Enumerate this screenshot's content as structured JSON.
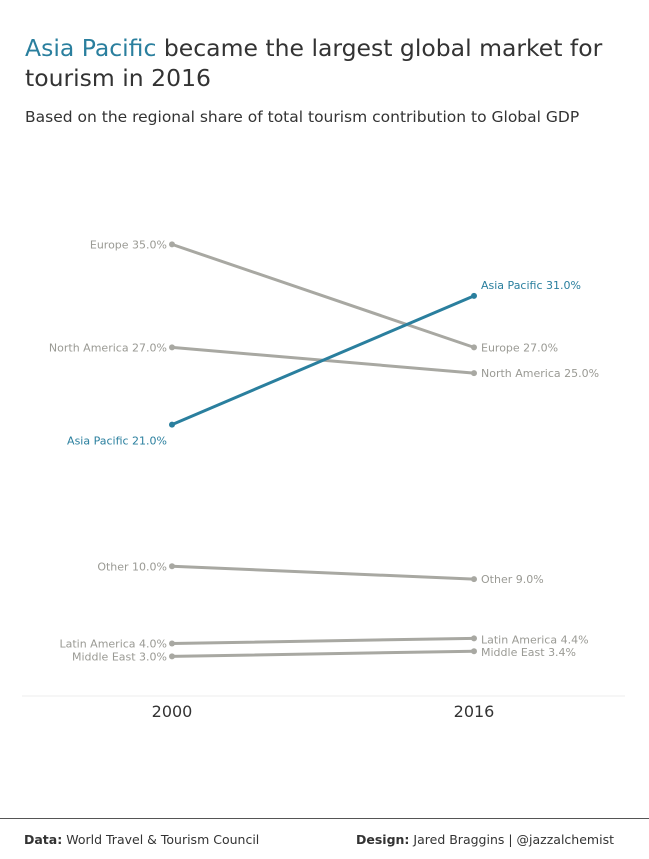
{
  "header": {
    "title_highlight": "Asia Pacific",
    "title_rest": " became the largest global market for tourism in 2016",
    "subtitle": "Based on the regional share of total tourism contribution to Global GDP"
  },
  "footer": {
    "data_label": "Data:",
    "data_source": "World Travel & Tourism Council",
    "design_label": "Design:",
    "design_credit": "Jared Braggins | @jazzalchemist"
  },
  "colors": {
    "highlight": "#2a7f9e",
    "muted": "#a8a8a2",
    "muted_text": "#9a9a94"
  },
  "chart_data": {
    "type": "line",
    "subtype": "slope",
    "x": [
      "2000",
      "2016"
    ],
    "ylim": [
      0,
      40
    ],
    "grid": false,
    "legend": "none",
    "series": [
      {
        "name": "Europe",
        "values": [
          35.0,
          27.0
        ],
        "labels": [
          "Europe 35.0%",
          "Europe 27.0%"
        ],
        "highlight": false
      },
      {
        "name": "North America",
        "values": [
          27.0,
          25.0
        ],
        "labels": [
          "North America 27.0%",
          "North America 25.0%"
        ],
        "highlight": false
      },
      {
        "name": "Asia Pacific",
        "values": [
          21.0,
          31.0
        ],
        "labels": [
          "Asia Pacific 21.0%",
          "Asia Pacific 31.0%"
        ],
        "highlight": true
      },
      {
        "name": "Other",
        "values": [
          10.0,
          9.0
        ],
        "labels": [
          "Other 10.0%",
          "Other 9.0%"
        ],
        "highlight": false
      },
      {
        "name": "Latin America",
        "values": [
          4.0,
          4.4
        ],
        "labels": [
          "Latin America 4.0%",
          "Latin America 4.4%"
        ],
        "highlight": false
      },
      {
        "name": "Middle East",
        "values": [
          3.0,
          3.4
        ],
        "labels": [
          "Middle East 3.0%",
          "Middle East 3.4%"
        ],
        "highlight": false
      }
    ]
  }
}
